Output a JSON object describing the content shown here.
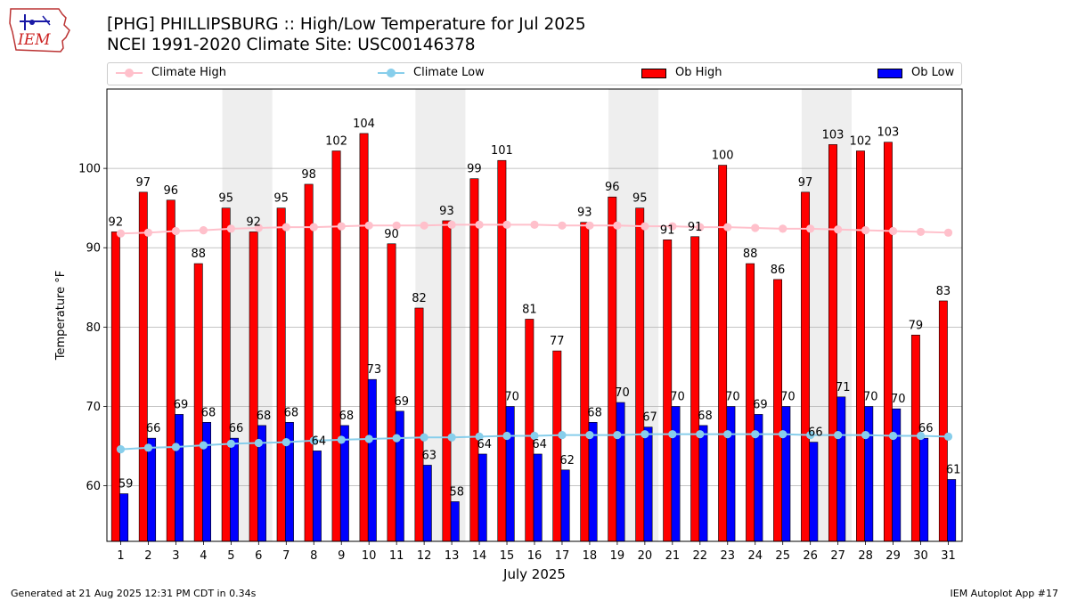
{
  "logo": {
    "text": "IEM",
    "icon": "iowa-state-outline-icon"
  },
  "title_line1": "[PHG] PHILLIPSBURG :: High/Low Temperature for Jul 2025",
  "title_line2": "NCEI 1991-2020 Climate Site: USC00146378",
  "legend": {
    "climate_high": "Climate High",
    "climate_low": "Climate Low",
    "ob_high": "Ob High",
    "ob_low": "Ob Low"
  },
  "footer": {
    "left": "Generated at 21 Aug 2025 12:31 PM CDT in 0.34s",
    "right": "IEM Autoplot App #17"
  },
  "colors": {
    "ob_high": "#ff0000",
    "ob_low": "#0000ff",
    "climate_high": "#ffc0cb",
    "climate_low": "#87ceeb",
    "weekend_shade": "#eeeeee"
  },
  "chart_data": {
    "type": "bar",
    "title": "[PHG] PHILLIPSBURG :: High/Low Temperature for Jul 2025",
    "xlabel": "July 2025",
    "ylabel": "Temperature °F",
    "ylim": [
      53,
      110
    ],
    "yticks": [
      60,
      70,
      80,
      90,
      100
    ],
    "grid": "y",
    "legend_position": "top",
    "categories": [
      "1",
      "2",
      "3",
      "4",
      "5",
      "6",
      "7",
      "8",
      "9",
      "10",
      "11",
      "12",
      "13",
      "14",
      "15",
      "16",
      "17",
      "18",
      "19",
      "20",
      "21",
      "22",
      "23",
      "24",
      "25",
      "26",
      "27",
      "28",
      "29",
      "30",
      "31"
    ],
    "shaded_days": [
      [
        5,
        6
      ],
      [
        12,
        13
      ],
      [
        19,
        20
      ],
      [
        26,
        27
      ]
    ],
    "series": [
      {
        "name": "Ob High",
        "kind": "bar",
        "values": [
          92.0,
          97.0,
          96.0,
          88.0,
          95.0,
          92.0,
          95.0,
          98.0,
          102.2,
          104.4,
          90.5,
          82.4,
          93.4,
          98.7,
          101.0,
          81.0,
          77.0,
          93.2,
          96.4,
          95.0,
          91.0,
          91.4,
          100.4,
          88.0,
          86.0,
          97.0,
          103.0,
          102.2,
          103.3,
          79.0,
          83.3
        ],
        "labels": [
          "92",
          "97",
          "96",
          "88",
          "95",
          "92",
          "95",
          "98",
          "102",
          "104",
          "90",
          "82",
          "93",
          "99",
          "101",
          "81",
          "77",
          "93",
          "96",
          "95",
          "91",
          "91",
          "100",
          "88",
          "86",
          "97",
          "103",
          "102",
          "103",
          "79",
          "83"
        ]
      },
      {
        "name": "Ob Low",
        "kind": "bar",
        "values": [
          59.0,
          66.0,
          69.0,
          68.0,
          66.0,
          67.6,
          68.0,
          64.4,
          67.6,
          73.4,
          69.4,
          62.6,
          58.0,
          64.0,
          70.0,
          64.0,
          62.0,
          68.0,
          70.5,
          67.4,
          70.0,
          67.6,
          70.0,
          69.0,
          70.0,
          65.5,
          71.2,
          70.0,
          69.7,
          66.0,
          60.8
        ],
        "labels": [
          "59",
          "66",
          "69",
          "68",
          "66",
          "68",
          "68",
          "64",
          "68",
          "73",
          "69",
          "63",
          "58",
          "64",
          "70",
          "64",
          "62",
          "68",
          "70",
          "67",
          "70",
          "68",
          "70",
          "69",
          "70",
          "66",
          "71",
          "70",
          "70",
          "66",
          "61"
        ]
      },
      {
        "name": "Climate High",
        "kind": "line",
        "values": [
          91.8,
          91.9,
          92.1,
          92.2,
          92.4,
          92.5,
          92.6,
          92.6,
          92.7,
          92.8,
          92.8,
          92.8,
          92.9,
          92.9,
          92.9,
          92.9,
          92.8,
          92.8,
          92.8,
          92.7,
          92.7,
          92.6,
          92.6,
          92.5,
          92.4,
          92.4,
          92.3,
          92.2,
          92.1,
          92.0,
          91.9
        ]
      },
      {
        "name": "Climate Low",
        "kind": "line",
        "values": [
          64.6,
          64.8,
          64.9,
          65.1,
          65.3,
          65.4,
          65.5,
          65.7,
          65.8,
          65.9,
          66.0,
          66.1,
          66.1,
          66.2,
          66.3,
          66.3,
          66.4,
          66.4,
          66.4,
          66.5,
          66.5,
          66.5,
          66.5,
          66.5,
          66.5,
          66.4,
          66.4,
          66.4,
          66.3,
          66.3,
          66.2
        ]
      }
    ]
  }
}
